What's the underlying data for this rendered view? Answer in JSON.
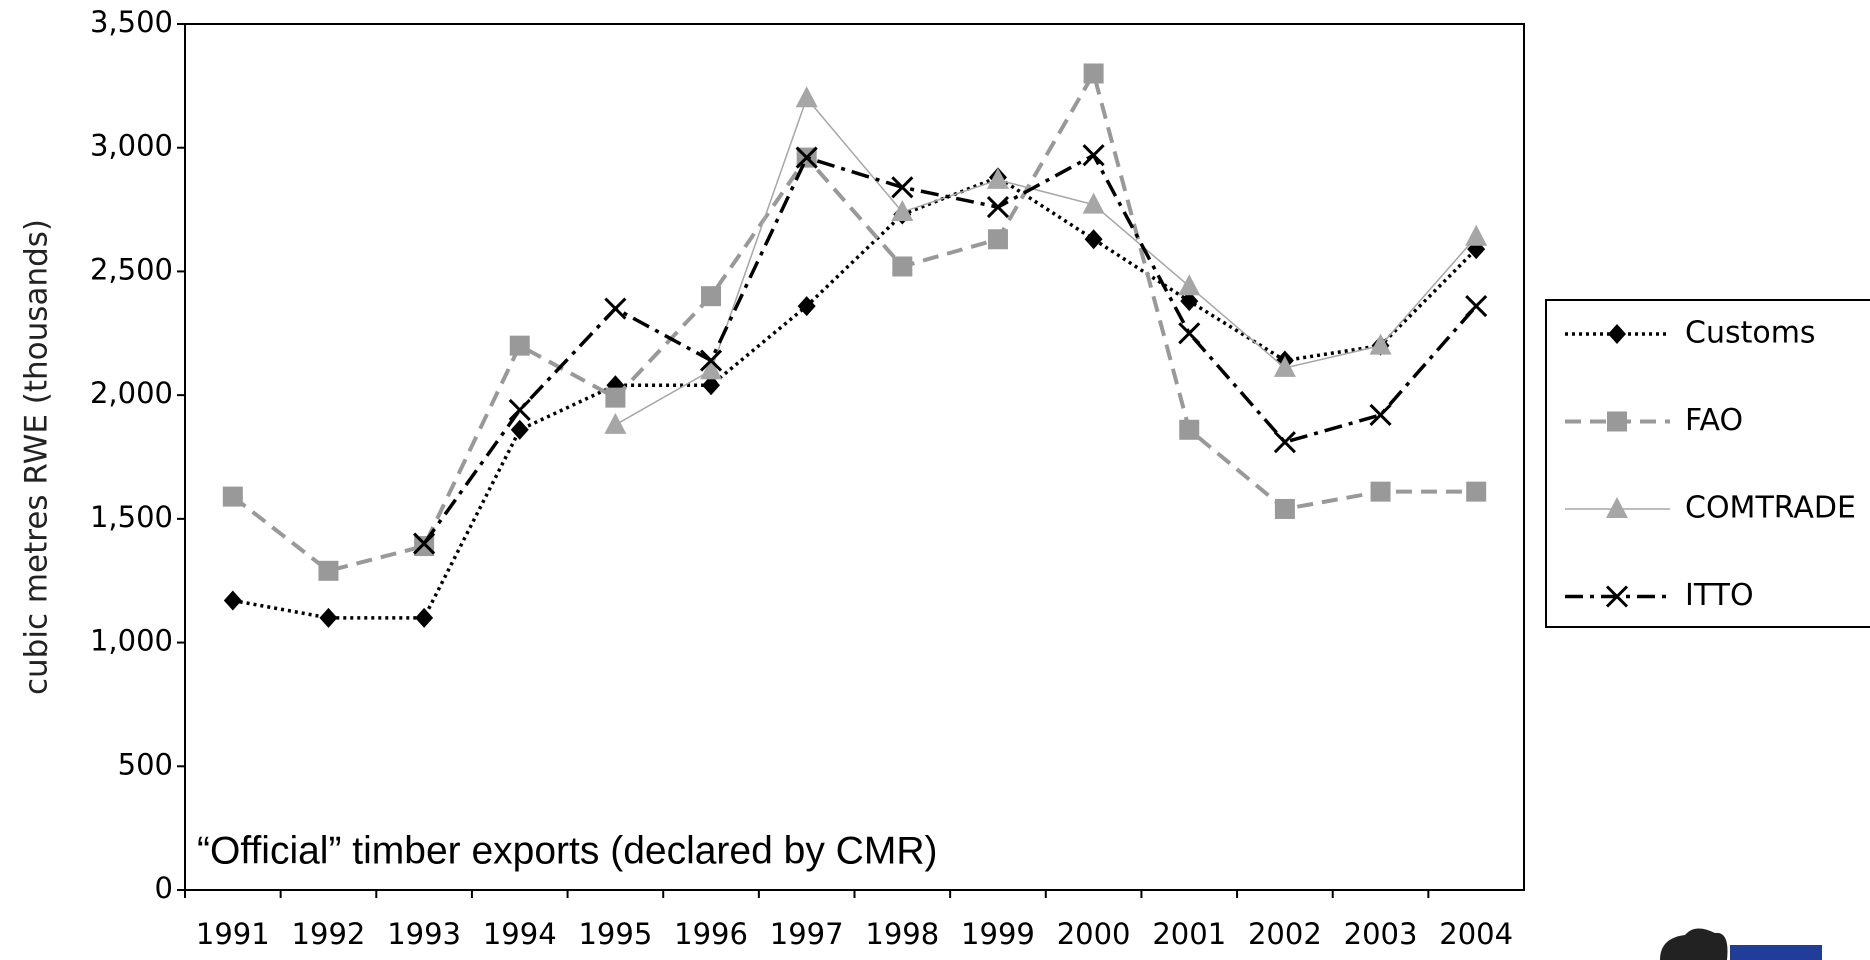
{
  "chart_data": {
    "type": "line",
    "annotation": "“Official” timber exports (declared by CMR)",
    "y_label": "cubic metres RWE (thousands)",
    "categories": [
      "1991",
      "1992",
      "1993",
      "1994",
      "1995",
      "1996",
      "1997",
      "1998",
      "1999",
      "2000",
      "2001",
      "2002",
      "2003",
      "2004"
    ],
    "series": [
      {
        "name": "Customs",
        "color": "#000000",
        "marker": "diamond",
        "dash": "dotted",
        "values": [
          1170,
          1100,
          1100,
          1860,
          2040,
          2040,
          2360,
          2730,
          2880,
          2630,
          2380,
          2140,
          2200,
          2590
        ]
      },
      {
        "name": "FAO",
        "color": "#999999",
        "marker": "square",
        "dash": "dashed",
        "values": [
          1590,
          1290,
          1390,
          2200,
          1990,
          2400,
          2960,
          2520,
          2630,
          3300,
          1860,
          1540,
          1610,
          1610
        ]
      },
      {
        "name": "COMTRADE",
        "color": "#a6a6a6",
        "marker": "triangle",
        "dash": "solid",
        "values": [
          null,
          null,
          null,
          null,
          1880,
          2100,
          3200,
          2740,
          2870,
          2770,
          2440,
          2110,
          2200,
          2640
        ]
      },
      {
        "name": "ITTO",
        "color": "#000000",
        "marker": "cross",
        "dash": "dashdot",
        "values": [
          null,
          null,
          1400,
          1940,
          2350,
          2140,
          2960,
          2840,
          2760,
          2970,
          2250,
          1810,
          1920,
          2360
        ]
      }
    ],
    "ylim": [
      0,
      3500
    ],
    "yticks": [
      0,
      {
        "value": 500,
        "label": "500"
      },
      {
        "value": 1000,
        "label": "1,000"
      },
      {
        "value": 1500,
        "label": "1,500"
      },
      {
        "value": 2000,
        "label": "2,000"
      },
      {
        "value": 2500,
        "label": "2,500"
      },
      {
        "value": 3000,
        "label": "3,000"
      },
      {
        "value": 3500,
        "label": "3,500"
      }
    ],
    "grid": false,
    "legend": "right"
  }
}
